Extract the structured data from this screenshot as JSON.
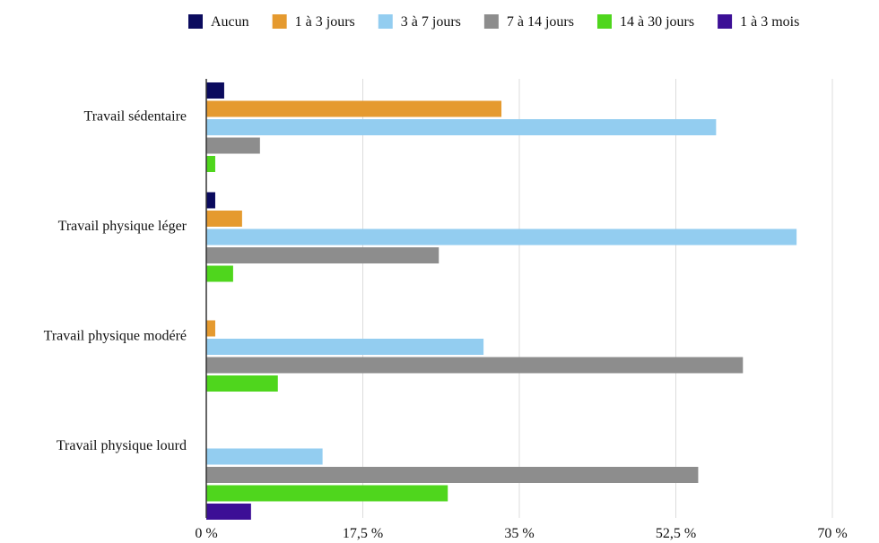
{
  "chart_data": {
    "type": "bar",
    "orientation": "horizontal",
    "title": "",
    "xlabel": "",
    "ylabel": "",
    "xlim": [
      0,
      70
    ],
    "ticks": [
      0,
      17.5,
      35,
      52.5,
      70
    ],
    "tick_labels": [
      "0 %",
      "17,5 %",
      "35 %",
      "52,5 %",
      "70 %"
    ],
    "grid": true,
    "legend_position": "top",
    "categories": [
      "Travail sédentaire",
      "Travail physique léger",
      "Travail physique modéré",
      "Travail physique lourd"
    ],
    "series": [
      {
        "name": "Aucun",
        "color": "#0b0b5e",
        "values": [
          2,
          1,
          0,
          0
        ]
      },
      {
        "name": "1 à 3 jours",
        "color": "#e59a2f",
        "values": [
          33,
          4,
          1,
          0
        ]
      },
      {
        "name": "3 à 7 jours",
        "color": "#93cdf0",
        "values": [
          57,
          66,
          31,
          13
        ]
      },
      {
        "name": "7 à 14 jours",
        "color": "#8d8d8d",
        "values": [
          6,
          26,
          60,
          55
        ]
      },
      {
        "name": "14 à 30 jours",
        "color": "#4fd61d",
        "values": [
          1,
          3,
          8,
          27
        ]
      },
      {
        "name": "1 à 3 mois",
        "color": "#3c0f96",
        "values": [
          0,
          0,
          0,
          5
        ]
      }
    ]
  }
}
